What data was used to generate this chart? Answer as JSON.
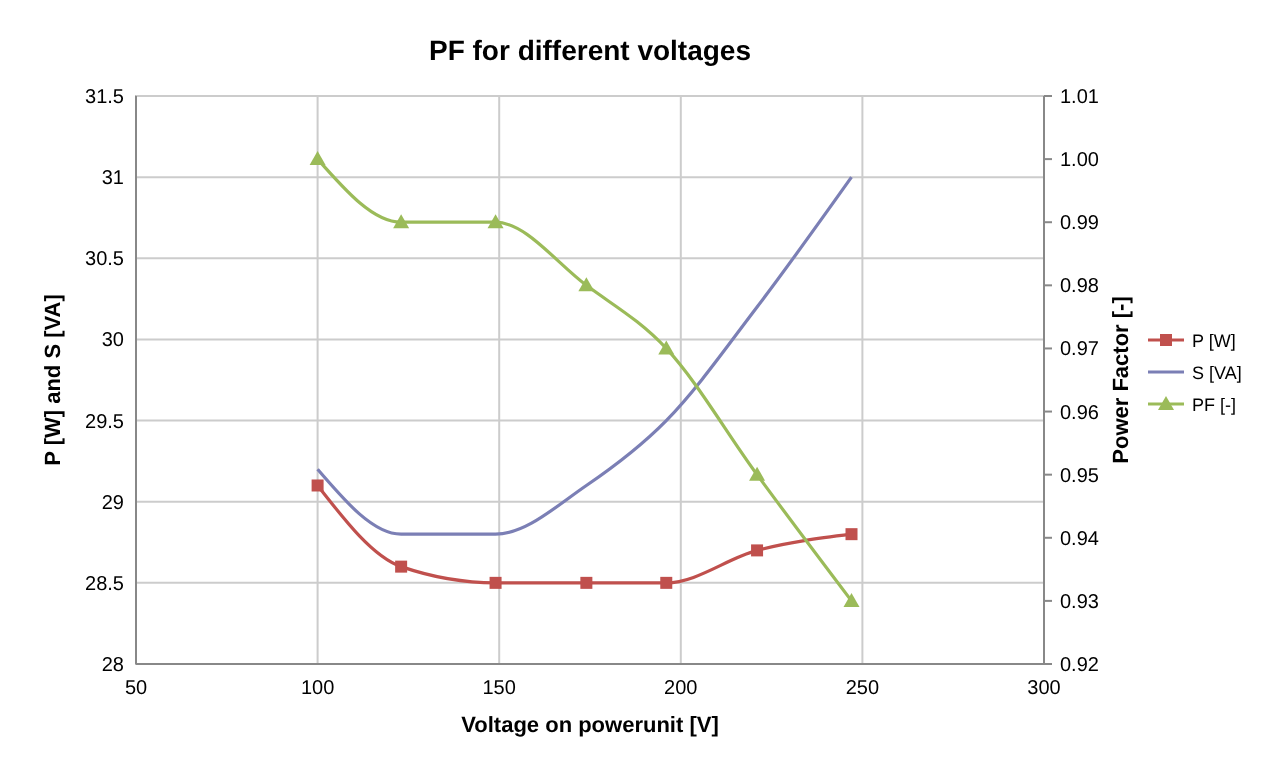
{
  "chart_data": {
    "type": "line",
    "title": "PF for different voltages",
    "xlabel": "Voltage on powerunit [V]",
    "ylabel": "P [W] and S [VA]",
    "y2label": "Power Factor [-]",
    "x": [
      100,
      123,
      149,
      174,
      196,
      221,
      247
    ],
    "series": [
      {
        "name": "P [W]",
        "color": "#c0504d",
        "marker": "square",
        "values": [
          29.1,
          28.6,
          28.5,
          28.5,
          28.5,
          28.7,
          28.8
        ]
      },
      {
        "name": "S [VA]",
        "color": "#7b7fb5",
        "marker": "none",
        "values": [
          29.2,
          28.8,
          28.8,
          29.1,
          29.5,
          30.2,
          31.0
        ]
      },
      {
        "name": "PF [-]",
        "color": "#9bbb59",
        "marker": "triangle",
        "axis": "y2",
        "values": [
          1.0,
          0.99,
          0.99,
          0.98,
          0.97,
          0.95,
          0.93
        ]
      }
    ],
    "xlim": [
      50,
      300
    ],
    "xticks": [
      50,
      100,
      150,
      200,
      250,
      300
    ],
    "ylim": [
      28,
      31.5
    ],
    "yticks": [
      28,
      28.5,
      29,
      29.5,
      30,
      30.5,
      31,
      31.5
    ],
    "y2lim": [
      0.92,
      1.01
    ],
    "y2ticks": [
      {
        "value": 0.92,
        "label": "0.92"
      },
      {
        "value": 0.93,
        "label": "0.93"
      },
      {
        "value": 0.94,
        "label": "0.94"
      },
      {
        "value": 0.95,
        "label": "0.95"
      },
      {
        "value": 0.96,
        "label": "0.96"
      },
      {
        "value": 0.97,
        "label": "0.97"
      },
      {
        "value": 0.98,
        "label": "0.98"
      },
      {
        "value": 0.99,
        "label": "0.99"
      },
      {
        "value": 1.0,
        "label": "1.00"
      },
      {
        "value": 1.01,
        "label": "1.01"
      }
    ],
    "grid": true,
    "legend": "right"
  }
}
